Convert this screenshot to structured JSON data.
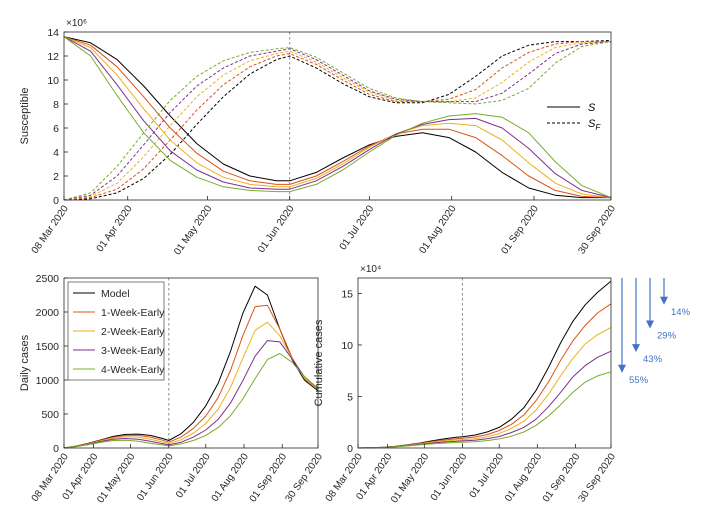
{
  "chart_data": [
    {
      "type": "line",
      "ylabel": "Susceptible",
      "y_multiplier": "×10⁶",
      "ylim": [
        0,
        14
      ],
      "yticks": [
        0,
        2,
        4,
        6,
        8,
        10,
        12,
        14
      ],
      "xlim": [
        "2020-03-08",
        "2020-09-30"
      ],
      "xticks": [
        {
          "date": "2020-03-08",
          "label": "08 Mar 2020"
        },
        {
          "date": "2020-04-01",
          "label": "01 Apr 2020"
        },
        {
          "date": "2020-05-01",
          "label": "01 May 2020"
        },
        {
          "date": "2020-06-01",
          "label": "01 Jun 2020"
        },
        {
          "date": "2020-07-01",
          "label": "01 Jul 2020"
        },
        {
          "date": "2020-08-01",
          "label": "01 Aug 2020"
        },
        {
          "date": "2020-09-01",
          "label": "01 Sep 2020"
        },
        {
          "date": "2020-09-30",
          "label": "30 Sep 2020"
        }
      ],
      "vline": "2020-06-01",
      "legend": {
        "position": "right",
        "entries": [
          {
            "label": "S",
            "style": "solid"
          },
          {
            "label": "S_F",
            "style": "dashed"
          }
        ]
      },
      "x": [
        "2020-03-08",
        "2020-03-18",
        "2020-03-28",
        "2020-04-07",
        "2020-04-17",
        "2020-04-27",
        "2020-05-07",
        "2020-05-17",
        "2020-05-27",
        "2020-06-01",
        "2020-06-11",
        "2020-06-21",
        "2020-07-01",
        "2020-07-11",
        "2020-07-21",
        "2020-07-31",
        "2020-08-10",
        "2020-08-20",
        "2020-08-30",
        "2020-09-09",
        "2020-09-19",
        "2020-09-30"
      ],
      "series": [
        {
          "color": "#000000",
          "S": [
            13.6,
            13.1,
            11.7,
            9.5,
            7.0,
            4.7,
            3.0,
            2.0,
            1.6,
            1.6,
            2.3,
            3.5,
            4.6,
            5.3,
            5.6,
            5.2,
            4.0,
            2.3,
            1.0,
            0.4,
            0.2,
            0.2
          ],
          "S_F": [
            0.0,
            0.1,
            0.6,
            1.8,
            3.8,
            6.3,
            8.6,
            10.5,
            11.7,
            12.0,
            11.0,
            9.7,
            8.6,
            8.1,
            8.1,
            8.8,
            10.3,
            12.0,
            12.9,
            13.2,
            13.2,
            13.3
          ]
        },
        {
          "color": "#d95319",
          "S": [
            13.6,
            12.9,
            11.1,
            8.6,
            6.0,
            3.9,
            2.4,
            1.6,
            1.3,
            1.3,
            2.0,
            3.2,
            4.5,
            5.5,
            5.9,
            5.9,
            5.2,
            3.7,
            2.0,
            0.8,
            0.3,
            0.2
          ],
          "S_F": [
            0.0,
            0.2,
            0.9,
            2.6,
            5.0,
            7.5,
            9.6,
            11.1,
            12.0,
            12.2,
            11.3,
            10.0,
            8.8,
            8.2,
            8.2,
            8.4,
            9.2,
            11.0,
            12.3,
            13.0,
            13.2,
            13.2
          ]
        },
        {
          "color": "#edb120",
          "S": [
            13.6,
            12.7,
            10.4,
            7.6,
            5.0,
            3.1,
            1.9,
            1.3,
            1.1,
            1.1,
            1.8,
            3.0,
            4.4,
            5.5,
            6.2,
            6.4,
            6.2,
            5.0,
            3.1,
            1.4,
            0.5,
            0.2
          ],
          "S_F": [
            0.0,
            0.3,
            1.4,
            3.6,
            6.2,
            8.6,
            10.4,
            11.6,
            12.2,
            12.4,
            11.5,
            10.2,
            9.0,
            8.3,
            8.2,
            8.2,
            8.5,
            9.8,
            11.5,
            12.7,
            13.1,
            13.2
          ]
        },
        {
          "color": "#7e2f8e",
          "S": [
            13.6,
            12.4,
            9.6,
            6.6,
            4.1,
            2.5,
            1.5,
            1.0,
            0.9,
            0.9,
            1.6,
            2.8,
            4.2,
            5.5,
            6.3,
            6.7,
            6.8,
            6.0,
            4.3,
            2.2,
            0.8,
            0.2
          ],
          "S_F": [
            0.0,
            0.4,
            2.0,
            4.6,
            7.3,
            9.5,
            11.0,
            12.0,
            12.4,
            12.6,
            11.7,
            10.4,
            9.1,
            8.4,
            8.2,
            8.2,
            8.2,
            8.9,
            10.5,
            12.2,
            13.0,
            13.2
          ]
        },
        {
          "color": "#77ac30",
          "S": [
            13.6,
            12.0,
            8.7,
            5.6,
            3.3,
            1.9,
            1.1,
            0.8,
            0.7,
            0.7,
            1.3,
            2.5,
            4.0,
            5.4,
            6.4,
            7.0,
            7.2,
            6.9,
            5.6,
            3.2,
            1.2,
            0.2
          ],
          "S_F": [
            0.0,
            0.6,
            2.8,
            5.6,
            8.3,
            10.3,
            11.6,
            12.3,
            12.6,
            12.7,
            11.9,
            10.6,
            9.3,
            8.5,
            8.2,
            8.1,
            8.0,
            8.3,
            9.3,
            11.4,
            12.8,
            13.2
          ]
        }
      ]
    },
    {
      "type": "line",
      "ylabel": "Daily cases",
      "ylim": [
        0,
        2500
      ],
      "yticks": [
        0,
        500,
        1000,
        1500,
        2000,
        2500
      ],
      "xlim": [
        "2020-03-08",
        "2020-09-30"
      ],
      "xticks": [
        {
          "date": "2020-03-08",
          "label": "08 Mar 2020"
        },
        {
          "date": "2020-04-01",
          "label": "01 Apr 2020"
        },
        {
          "date": "2020-05-01",
          "label": "01 May 2020"
        },
        {
          "date": "2020-06-01",
          "label": "01 Jun 2020"
        },
        {
          "date": "2020-07-01",
          "label": "01 Jul 2020"
        },
        {
          "date": "2020-08-01",
          "label": "01 Aug 2020"
        },
        {
          "date": "2020-09-01",
          "label": "01 Sep 2020"
        },
        {
          "date": "2020-09-30",
          "label": "30 Sep 2020"
        }
      ],
      "vline": "2020-06-01",
      "legend": {
        "position": "top-left"
      },
      "x": [
        "2020-03-08",
        "2020-03-18",
        "2020-03-28",
        "2020-04-07",
        "2020-04-17",
        "2020-04-27",
        "2020-05-07",
        "2020-05-17",
        "2020-05-27",
        "2020-06-01",
        "2020-06-11",
        "2020-06-21",
        "2020-07-01",
        "2020-07-11",
        "2020-07-21",
        "2020-07-31",
        "2020-08-10",
        "2020-08-20",
        "2020-08-30",
        "2020-09-09",
        "2020-09-19",
        "2020-09-30"
      ],
      "series": [
        {
          "name": "Model",
          "color": "#000000",
          "values": [
            0,
            30,
            70,
            120,
            170,
            200,
            205,
            185,
            140,
            110,
            210,
            380,
            620,
            950,
            1420,
            1980,
            2380,
            2250,
            1750,
            1300,
            1000,
            840
          ]
        },
        {
          "name": "1-Week-Early",
          "color": "#d95319",
          "values": [
            0,
            28,
            65,
            115,
            160,
            185,
            185,
            160,
            115,
            85,
            160,
            290,
            470,
            740,
            1140,
            1650,
            2080,
            2100,
            1750,
            1330,
            1020,
            850
          ]
        },
        {
          "name": "2-Week-Early",
          "color": "#edb120",
          "values": [
            0,
            25,
            60,
            105,
            145,
            165,
            160,
            130,
            90,
            65,
            120,
            220,
            360,
            570,
            890,
            1320,
            1730,
            1850,
            1650,
            1320,
            1030,
            860
          ]
        },
        {
          "name": "3-Week-Early",
          "color": "#7e2f8e",
          "values": [
            0,
            22,
            55,
            95,
            128,
            140,
            130,
            100,
            65,
            45,
            85,
            160,
            265,
            420,
            660,
            990,
            1350,
            1580,
            1560,
            1310,
            1050,
            870
          ]
        },
        {
          "name": "4-Week-Early",
          "color": "#77ac30",
          "values": [
            0,
            20,
            50,
            85,
            110,
            115,
            100,
            70,
            45,
            30,
            60,
            110,
            185,
            300,
            475,
            720,
            1020,
            1300,
            1390,
            1260,
            1050,
            880
          ]
        }
      ]
    },
    {
      "type": "line",
      "ylabel": "Cumulative cases",
      "y_multiplier": "×10⁴",
      "ylim": [
        0,
        16.5
      ],
      "yticks": [
        0,
        5,
        10,
        15
      ],
      "xlim": [
        "2020-03-08",
        "2020-09-30"
      ],
      "xticks": [
        {
          "date": "2020-03-08",
          "label": "08 Mar 2020"
        },
        {
          "date": "2020-04-01",
          "label": "01 Apr 2020"
        },
        {
          "date": "2020-05-01",
          "label": "01 May 2020"
        },
        {
          "date": "2020-06-01",
          "label": "01 Jun 2020"
        },
        {
          "date": "2020-07-01",
          "label": "01 Jul 2020"
        },
        {
          "date": "2020-08-01",
          "label": "01 Aug 2020"
        },
        {
          "date": "2020-09-01",
          "label": "01 Sep 2020"
        },
        {
          "date": "2020-09-30",
          "label": "30 Sep 2020"
        }
      ],
      "vline": "2020-06-01",
      "x": [
        "2020-03-08",
        "2020-03-18",
        "2020-03-28",
        "2020-04-07",
        "2020-04-17",
        "2020-04-27",
        "2020-05-07",
        "2020-05-17",
        "2020-05-27",
        "2020-06-01",
        "2020-06-11",
        "2020-06-21",
        "2020-07-01",
        "2020-07-11",
        "2020-07-21",
        "2020-07-31",
        "2020-08-10",
        "2020-08-20",
        "2020-08-30",
        "2020-09-09",
        "2020-09-19",
        "2020-09-30"
      ],
      "series": [
        {
          "name": "Model",
          "color": "#000000",
          "values": [
            0,
            0.02,
            0.07,
            0.16,
            0.3,
            0.48,
            0.69,
            0.88,
            1.04,
            1.1,
            1.25,
            1.55,
            2.0,
            2.8,
            3.9,
            5.6,
            7.8,
            10.2,
            12.3,
            13.9,
            15.1,
            16.2
          ]
        },
        {
          "name": "1-Week-Early",
          "color": "#d95319",
          "values": [
            0,
            0.02,
            0.06,
            0.15,
            0.27,
            0.44,
            0.62,
            0.78,
            0.9,
            0.95,
            1.07,
            1.3,
            1.7,
            2.3,
            3.2,
            4.6,
            6.4,
            8.5,
            10.4,
            11.9,
            13.1,
            14.0
          ]
        },
        {
          "name": "2-Week-Early",
          "color": "#edb120",
          "values": [
            0,
            0.02,
            0.06,
            0.13,
            0.25,
            0.4,
            0.55,
            0.68,
            0.78,
            0.82,
            0.9,
            1.1,
            1.4,
            1.9,
            2.6,
            3.7,
            5.2,
            7.0,
            8.7,
            10.1,
            11.0,
            11.7
          ]
        },
        {
          "name": "3-Week-Early",
          "color": "#7e2f8e",
          "values": [
            0,
            0.02,
            0.05,
            0.12,
            0.22,
            0.35,
            0.48,
            0.58,
            0.66,
            0.69,
            0.75,
            0.9,
            1.12,
            1.5,
            2.0,
            2.8,
            4.0,
            5.4,
            6.9,
            8.0,
            8.8,
            9.4
          ]
        },
        {
          "name": "4-Week-Early",
          "color": "#77ac30",
          "values": [
            0,
            0.02,
            0.05,
            0.11,
            0.19,
            0.3,
            0.4,
            0.48,
            0.54,
            0.56,
            0.6,
            0.72,
            0.88,
            1.15,
            1.55,
            2.2,
            3.1,
            4.2,
            5.4,
            6.4,
            7.0,
            7.4
          ]
        }
      ],
      "reductions": [
        {
          "label": "14%",
          "value": 14.0
        },
        {
          "label": "29%",
          "value": 11.7
        },
        {
          "label": "43%",
          "value": 9.4
        },
        {
          "label": "55%",
          "value": 7.4
        }
      ],
      "reduction_color": "#4472c4"
    }
  ]
}
